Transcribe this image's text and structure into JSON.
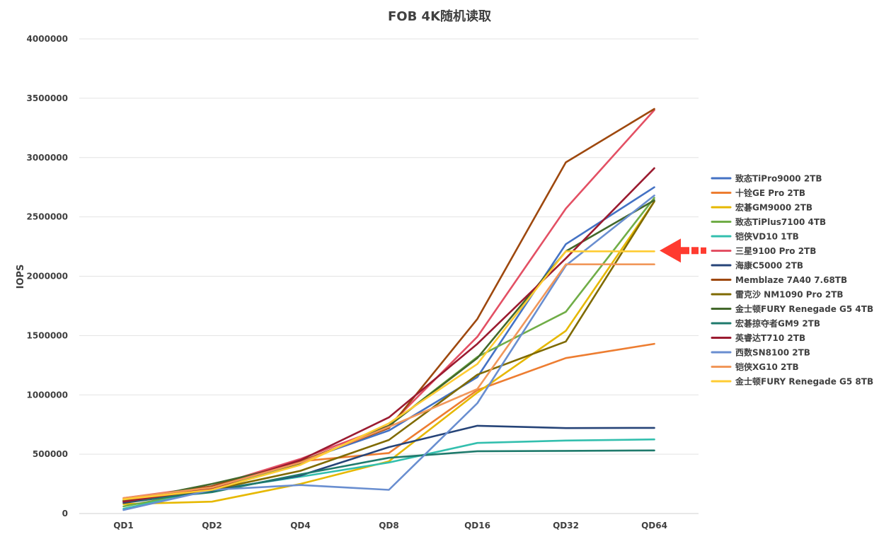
{
  "chart_data": {
    "type": "line",
    "title": "FOB 4K随机读取",
    "xlabel": "",
    "ylabel": "IOPS",
    "categories": [
      "QD1",
      "QD2",
      "QD4",
      "QD8",
      "QD16",
      "QD32",
      "QD64"
    ],
    "ylim": [
      0,
      4000000
    ],
    "yticks": [
      0,
      500000,
      1000000,
      1500000,
      2000000,
      2500000,
      3000000,
      3500000,
      4000000
    ],
    "ytick_labels": [
      "0",
      "500000",
      "1000000",
      "1500000",
      "2000000",
      "2500000",
      "3000000",
      "3500000",
      "4000000"
    ],
    "grid": true,
    "legend_position": "right",
    "series": [
      {
        "name": "致态TiPro9000 2TB",
        "color": "#4472c4",
        "values": [
          100000,
          190000,
          440000,
          700000,
          1150000,
          2270000,
          2750000
        ]
      },
      {
        "name": "十铨GE Pro 2TB",
        "color": "#ed7d31",
        "values": [
          120000,
          205000,
          440000,
          510000,
          1040000,
          1310000,
          1430000
        ]
      },
      {
        "name": "宏碁GM9000 2TB",
        "color": "#e6b800",
        "values": [
          80000,
          100000,
          250000,
          440000,
          1020000,
          1540000,
          2630000
        ]
      },
      {
        "name": "致态TiPlus7100 4TB",
        "color": "#70ad47",
        "values": [
          60000,
          200000,
          420000,
          740000,
          1320000,
          1700000,
          2660000
        ]
      },
      {
        "name": "铠侠VD10 1TB",
        "color": "#33bfae",
        "values": [
          40000,
          200000,
          310000,
          430000,
          595000,
          615000,
          625000
        ]
      },
      {
        "name": "三星9100 Pro 2TB",
        "color": "#e35064",
        "values": [
          130000,
          230000,
          460000,
          740000,
          1490000,
          2570000,
          3400000
        ]
      },
      {
        "name": "海康C5000 2TB",
        "color": "#264478",
        "values": [
          90000,
          190000,
          320000,
          560000,
          740000,
          720000,
          722000
        ]
      },
      {
        "name": "Memblaze 7A40 7.68TB",
        "color": "#9e480e",
        "values": [
          110000,
          230000,
          440000,
          720000,
          1640000,
          2960000,
          3410000
        ]
      },
      {
        "name": "雷克沙 NM1090 Pro 2TB",
        "color": "#7f6a00",
        "values": [
          110000,
          200000,
          360000,
          620000,
          1170000,
          1450000,
          2630000
        ]
      },
      {
        "name": "金士顿FURY Renegade G5 4TB",
        "color": "#43682b",
        "values": [
          100000,
          250000,
          420000,
          740000,
          1310000,
          2210000,
          2640000
        ]
      },
      {
        "name": "宏碁掠夺者GM9 2TB",
        "color": "#1f7a6c",
        "values": [
          100000,
          180000,
          330000,
          470000,
          525000,
          528000,
          532000
        ]
      },
      {
        "name": "英睿达T710 2TB",
        "color": "#9b1b30",
        "values": [
          100000,
          210000,
          450000,
          810000,
          1430000,
          2150000,
          2910000
        ]
      },
      {
        "name": "西数SN8100 2TB",
        "color": "#698ed0",
        "values": [
          30000,
          200000,
          240000,
          200000,
          930000,
          2090000,
          2680000
        ]
      },
      {
        "name": "铠侠XG10 2TB",
        "color": "#f1975a",
        "values": [
          130000,
          220000,
          430000,
          730000,
          1050000,
          2100000,
          2100000
        ]
      },
      {
        "name": "金士顿FURY Renegade G5 8TB",
        "color": "#ffcc33",
        "values": [
          120000,
          200000,
          410000,
          760000,
          1260000,
          2210000,
          2210000
        ]
      }
    ],
    "annotation": {
      "type": "arrow",
      "color": "#ff3b30",
      "points_to_value": 2210000,
      "points_to_category": "QD64"
    }
  }
}
